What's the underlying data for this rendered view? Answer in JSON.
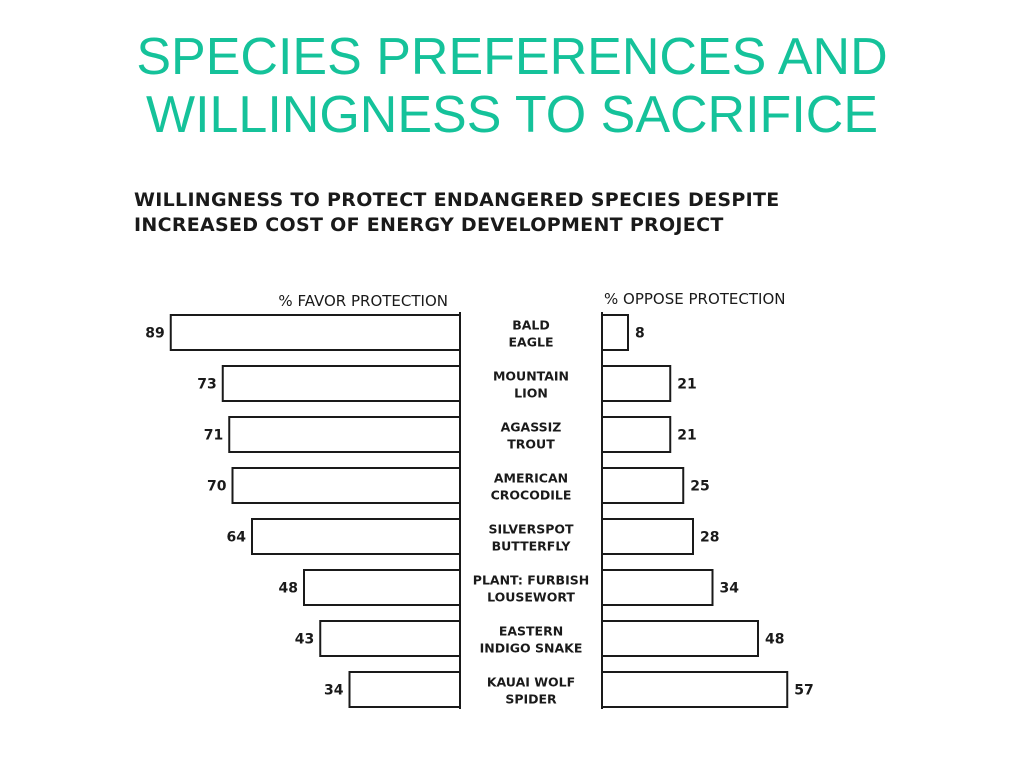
{
  "slide": {
    "title_line1": "SPECIES PREFERENCES AND",
    "title_line2": "WILLINGNESS TO SACRIFICE",
    "title_color": "#15c29a"
  },
  "chart_data": {
    "type": "bar",
    "title_line1": "WILLINGNESS TO PROTECT ENDANGERED SPECIES DESPITE",
    "title_line2": "INCREASED COST OF ENERGY DEVELOPMENT PROJECT",
    "categories": [
      [
        "BALD",
        "EAGLE"
      ],
      [
        "MOUNTAIN",
        "LION"
      ],
      [
        "AGASSIZ",
        "TROUT"
      ],
      [
        "AMERICAN",
        "CROCODILE"
      ],
      [
        "SILVERSPOT",
        "BUTTERFLY"
      ],
      [
        "PLANT: FURBISH",
        "LOUSEWORT"
      ],
      [
        "EASTERN",
        "INDIGO SNAKE"
      ],
      [
        "KAUAI WOLF",
        "SPIDER"
      ]
    ],
    "series": [
      {
        "name": "% FAVOR PROTECTION",
        "values": [
          89,
          73,
          71,
          70,
          64,
          48,
          43,
          34
        ]
      },
      {
        "name": "% OPPOSE PROTECTION",
        "values": [
          8,
          21,
          21,
          25,
          28,
          34,
          48,
          57
        ]
      }
    ],
    "legend": "headers above each half",
    "grid": false
  }
}
